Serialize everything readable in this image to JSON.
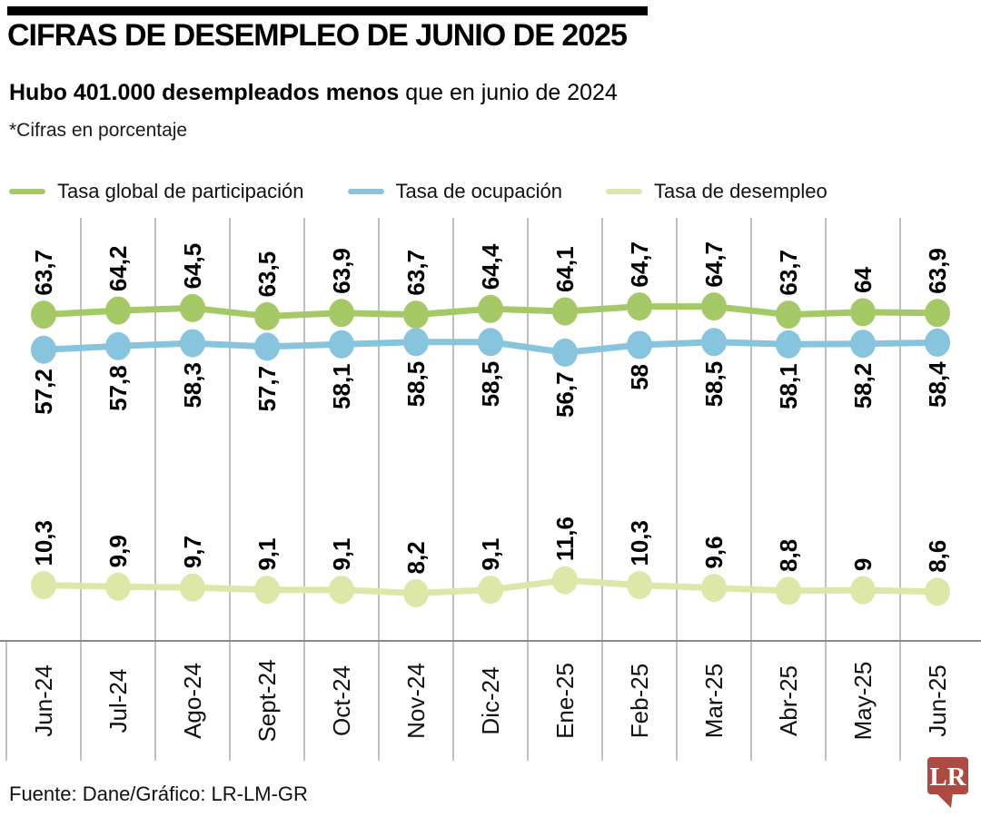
{
  "header": {
    "title": "CIFRAS DE DESEMPLEO DE JUNIO DE 2025",
    "subtitle_bold": "Hubo 401.000 desempleados menos",
    "subtitle_rest": " que en junio de 2024",
    "note": "*Cifras en porcentaje"
  },
  "legend": [
    {
      "label": "Tasa global de participación",
      "color": "#a5c967"
    },
    {
      "label": "Tasa de ocupación",
      "color": "#87c4dd"
    },
    {
      "label": "Tasa de desempleo",
      "color": "#dde7a8"
    }
  ],
  "chart_data": {
    "type": "line",
    "unit": "percent",
    "grid": "vertical-column-separators",
    "legend_position": "top",
    "categories": [
      "Jun-24",
      "Jul-24",
      "Ago-24",
      "Sept-24",
      "Oct-24",
      "Nov-24",
      "Dic-24",
      "Ene-25",
      "Feb-25",
      "Mar-25",
      "Abr-25",
      "May-25",
      "Jun-25"
    ],
    "series": [
      {
        "name": "Tasa global de participación",
        "color": "#a5c967",
        "values": [
          63.7,
          64.2,
          64.5,
          63.5,
          63.9,
          63.7,
          64.4,
          64.1,
          64.7,
          64.7,
          63.7,
          64,
          63.9
        ],
        "labels": [
          "63,7",
          "64,2",
          "64,5",
          "63,5",
          "63,9",
          "63,7",
          "64,4",
          "64,1",
          "64,7",
          "64,7",
          "63,7",
          "64",
          "63,9"
        ],
        "label_side": "above"
      },
      {
        "name": "Tasa de ocupación",
        "color": "#87c4dd",
        "values": [
          57.2,
          57.8,
          58.3,
          57.7,
          58.1,
          58.5,
          58.5,
          56.7,
          58,
          58.5,
          58.1,
          58.2,
          58.4
        ],
        "labels": [
          "57,2",
          "57,8",
          "58,3",
          "57,7",
          "58,1",
          "58,5",
          "58,5",
          "56,7",
          "58",
          "58,5",
          "58,1",
          "58,2",
          "58,4"
        ],
        "label_side": "below"
      },
      {
        "name": "Tasa de desempleo",
        "color": "#dde7a8",
        "values": [
          10.3,
          9.9,
          9.7,
          9.1,
          9.1,
          8.2,
          9.1,
          11.6,
          10.3,
          9.6,
          8.8,
          9,
          8.6
        ],
        "labels": [
          "10,3",
          "9,9",
          "9,7",
          "9,1",
          "9,1",
          "8,2",
          "9,1",
          "11,6",
          "10,3",
          "9,6",
          "8,8",
          "9",
          "8,6"
        ],
        "label_side": "above"
      }
    ],
    "colors": {
      "gridline": "#9e9e9e",
      "axis_line": "#8a8a8a",
      "label_text": "#000000"
    }
  },
  "footer": {
    "source": "Fuente: Dane/Gráfico: LR-LM-GR",
    "logo_text": "LR",
    "logo_color": "#ad4a41"
  }
}
